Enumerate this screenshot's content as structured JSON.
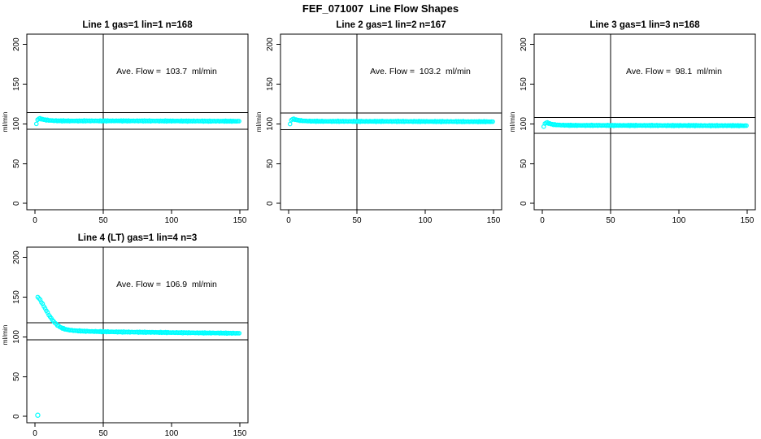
{
  "title": "FEF_071007  Line Flow Shapes",
  "colors": {
    "point": "#00ffff",
    "line": "#000000",
    "background": "#ffffff",
    "text": "#000000"
  },
  "chart_data": [
    {
      "type": "scatter",
      "title": "Line 1 gas=1 lin=1 n=168",
      "annotation": "Ave. Flow =  103.7  ml/min",
      "ave_flow": 103.7,
      "n": 168,
      "ylabel": "ml/min",
      "xlim": [
        -6,
        156
      ],
      "ylim": [
        -8,
        213
      ],
      "x_ticks": [
        0,
        50,
        100,
        150
      ],
      "y_ticks": [
        0,
        50,
        100,
        150,
        200
      ],
      "ref_lines": {
        "h_upper": 114.1,
        "h_lower": 93.3,
        "v": 50
      },
      "marker_step": 0.9,
      "jitter": 0.5,
      "points": [
        [
          1,
          100.2
        ],
        [
          2,
          105.8
        ],
        [
          3,
          107
        ],
        [
          4,
          106.6
        ],
        [
          5,
          106.1
        ],
        [
          6,
          105.6
        ],
        [
          8,
          105
        ],
        [
          10,
          104.6
        ],
        [
          13,
          104.2
        ],
        [
          16,
          104
        ],
        [
          20,
          103.9
        ],
        [
          25,
          103.8
        ],
        [
          30,
          103.8
        ],
        [
          40,
          103.9
        ],
        [
          50,
          103.8
        ],
        [
          60,
          103.9
        ],
        [
          70,
          103.8
        ],
        [
          80,
          103.8
        ],
        [
          90,
          103.7
        ],
        [
          100,
          103.7
        ],
        [
          110,
          103.6
        ],
        [
          120,
          103.6
        ],
        [
          130,
          103.5
        ],
        [
          140,
          103.5
        ],
        [
          150,
          103.4
        ]
      ],
      "outliers": []
    },
    {
      "type": "scatter",
      "title": "Line 2 gas=1 lin=2 n=167",
      "annotation": "Ave. Flow =  103.2  ml/min",
      "ave_flow": 103.2,
      "n": 167,
      "ylabel": "ml/min",
      "xlim": [
        -6,
        156
      ],
      "ylim": [
        -8,
        213
      ],
      "x_ticks": [
        0,
        50,
        100,
        150
      ],
      "y_ticks": [
        0,
        50,
        100,
        150,
        200
      ],
      "ref_lines": {
        "h_upper": 113.5,
        "h_lower": 92.9,
        "v": 50
      },
      "marker_step": 0.9,
      "jitter": 0.5,
      "points": [
        [
          1,
          100
        ],
        [
          2,
          105.3
        ],
        [
          3,
          106.4
        ],
        [
          4,
          106
        ],
        [
          5,
          105.5
        ],
        [
          6,
          105
        ],
        [
          8,
          104.4
        ],
        [
          10,
          104
        ],
        [
          13,
          103.7
        ],
        [
          16,
          103.5
        ],
        [
          20,
          103.4
        ],
        [
          25,
          103.3
        ],
        [
          30,
          103.3
        ],
        [
          40,
          103.3
        ],
        [
          50,
          103.2
        ],
        [
          60,
          103.2
        ],
        [
          70,
          103.2
        ],
        [
          80,
          103.2
        ],
        [
          90,
          103.1
        ],
        [
          100,
          103.1
        ],
        [
          110,
          103
        ],
        [
          120,
          103
        ],
        [
          130,
          102.9
        ],
        [
          140,
          102.9
        ],
        [
          150,
          102.8
        ]
      ],
      "outliers": []
    },
    {
      "type": "scatter",
      "title": "Line 3 gas=1 lin=3 n=168",
      "annotation": "Ave. Flow =  98.1  ml/min",
      "ave_flow": 98.1,
      "n": 168,
      "ylabel": "ml/min",
      "xlim": [
        -6,
        156
      ],
      "ylim": [
        -8,
        213
      ],
      "x_ticks": [
        0,
        50,
        100,
        150
      ],
      "y_ticks": [
        0,
        50,
        100,
        150,
        200
      ],
      "ref_lines": {
        "h_upper": 107.9,
        "h_lower": 88.3,
        "v": 50
      },
      "marker_step": 0.9,
      "jitter": 0.5,
      "points": [
        [
          1,
          96.8
        ],
        [
          2,
          100.8
        ],
        [
          3,
          101.8
        ],
        [
          4,
          101.3
        ],
        [
          5,
          100.6
        ],
        [
          6,
          100
        ],
        [
          8,
          99.3
        ],
        [
          10,
          98.9
        ],
        [
          13,
          98.6
        ],
        [
          16,
          98.4
        ],
        [
          20,
          98.3
        ],
        [
          25,
          98.2
        ],
        [
          30,
          98.2
        ],
        [
          40,
          98.2
        ],
        [
          50,
          98.1
        ],
        [
          60,
          98.1
        ],
        [
          70,
          98.1
        ],
        [
          80,
          98.1
        ],
        [
          90,
          98
        ],
        [
          100,
          98
        ],
        [
          110,
          98
        ],
        [
          120,
          97.9
        ],
        [
          130,
          97.9
        ],
        [
          140,
          97.9
        ],
        [
          150,
          97.8
        ]
      ],
      "outliers": []
    },
    {
      "type": "scatter",
      "title": "Line 4 (LT) gas=1 lin=4 n=3",
      "annotation": "Ave. Flow =  106.9  ml/min",
      "ave_flow": 106.9,
      "n": 3,
      "ylabel": "ml/min",
      "xlim": [
        -6,
        156
      ],
      "ylim": [
        -8,
        213
      ],
      "x_ticks": [
        0,
        50,
        100,
        150
      ],
      "y_ticks": [
        0,
        50,
        100,
        150,
        200
      ],
      "ref_lines": {
        "h_upper": 117.6,
        "h_lower": 96.2,
        "v": 50
      },
      "marker_step": 0.9,
      "jitter": 0.5,
      "points": [
        [
          2,
          150
        ],
        [
          3,
          148.5
        ],
        [
          4,
          146
        ],
        [
          5,
          143
        ],
        [
          6,
          140
        ],
        [
          7,
          137
        ],
        [
          8,
          134
        ],
        [
          9,
          131
        ],
        [
          10,
          128
        ],
        [
          11,
          125.5
        ],
        [
          12,
          123
        ],
        [
          13,
          120.8
        ],
        [
          14,
          118.8
        ],
        [
          15,
          117
        ],
        [
          16,
          115.4
        ],
        [
          17,
          114
        ],
        [
          18,
          112.8
        ],
        [
          19,
          111.8
        ],
        [
          20,
          111
        ],
        [
          22,
          109.8
        ],
        [
          24,
          109
        ],
        [
          26,
          108.5
        ],
        [
          28,
          108.1
        ],
        [
          30,
          107.8
        ],
        [
          35,
          107.3
        ],
        [
          40,
          107
        ],
        [
          50,
          106.6
        ],
        [
          60,
          106.3
        ],
        [
          70,
          106.1
        ],
        [
          80,
          105.9
        ],
        [
          90,
          105.7
        ],
        [
          100,
          105.5
        ],
        [
          110,
          105.3
        ],
        [
          120,
          105.1
        ],
        [
          130,
          105
        ],
        [
          140,
          104.8
        ],
        [
          150,
          104.6
        ]
      ],
      "outliers": [
        [
          2,
          1.5
        ]
      ]
    }
  ]
}
